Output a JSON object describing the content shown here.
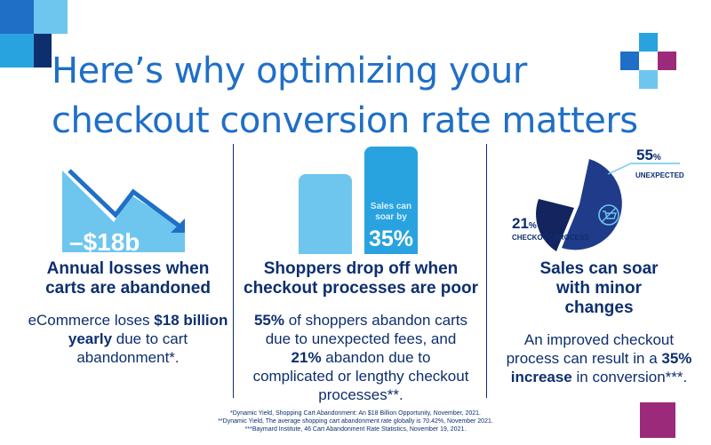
{
  "header": {
    "title": "Here’s why optimizing your checkout conversion rate matters"
  },
  "colors": {
    "navy": "#0d2f6e",
    "blue": "#1f6fc6",
    "sky": "#29a3e0",
    "light": "#6ec6ee",
    "magenta": "#9b2b7a"
  },
  "panel_losses": {
    "graphic_label": "–$18b",
    "heading": "Annual losses when carts are abandoned",
    "body": {
      "pre": "eCommerce loses ",
      "bold": "$18 billion yearly",
      "post": " due to cart abandonment*."
    }
  },
  "panel_dropoff": {
    "bar_label": "Sales can soar by",
    "bar_value": "35%",
    "heading": "Shoppers drop off when checkout processes are poor",
    "body": {
      "b1": "55%",
      "t1": " of shoppers abandon carts due to unexpected fees, and ",
      "b2": "21%",
      "t2": " abandon due to complicated or lengthy checkout processes**."
    }
  },
  "panel_changes": {
    "pie": {
      "fees_value": "55",
      "fees_unit": "%",
      "fees_label": "UNEXPECTED FEES",
      "process_value": "21",
      "process_unit": "%",
      "process_label": "CHECKOUT PROCESS",
      "icon": "shopping-cart-icon"
    },
    "heading": "Sales can soar with minor changes",
    "body": {
      "pre": "An improved checkout process can result in a ",
      "bold": "35% increase",
      "post": " in conversion***."
    }
  },
  "footnotes": [
    "*Dynamic Yield, Shopping Cart Abandonment: An $18 Billion Opportunity, November, 2021.",
    "**Dynamic Yield, The average shopping cart abandonment rate globally is 70.42%, November 2021.",
    "***Baymard Institute, 46 Cart Abandonment Rate Statistics, November 19, 2021."
  ]
}
